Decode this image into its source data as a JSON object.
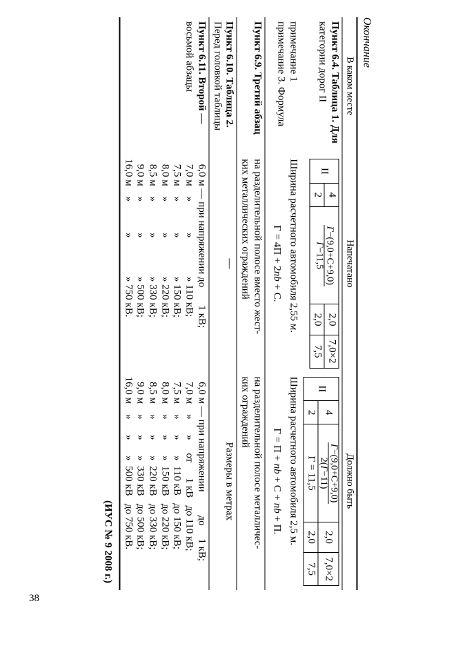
{
  "caption": "Окончание",
  "headers": {
    "col1": "В каком месте",
    "col2": "Напечатано",
    "col3": "Должно быть"
  },
  "row1": {
    "loc1": "Пункт 6.4. Таблица 1. Для",
    "loc2": "категории дорог II",
    "lab": "II",
    "p_top": "4",
    "p_bot": "2",
    "p_num": "Г−(9,0+С+9,0)",
    "p_den_printed": "Г−11,5",
    "p_den_should": "2(Г−11)",
    "c1_top": "2,0",
    "c1_bot": "2,0",
    "c2_top": "7,0×2",
    "c2_bot": "7,5",
    "s_row2_formula": "Г = 11,5",
    "s_row2_c1": "2,0",
    "s_row2_c2": "7,5"
  },
  "row2": {
    "loc1": "примечание 1",
    "loc2": "примечание 3. Формула",
    "printed": "Ширина расчетного автомобиля 2,55 м.",
    "should": "Ширина расчетного автомобиля 2,5 м.",
    "f_printed": "Г = 4П + 2nb + С.",
    "f_should": "Г = П + nb + С + nb + П."
  },
  "row3": {
    "loc": "Пункт 6.9. Третий абзац",
    "printed1": "на разделительной полосе вместо жест-",
    "printed2": "ких металлических ограждений",
    "should1": "на разделительной полосе металличес-",
    "should2": "ких ограждений"
  },
  "row4": {
    "loc1": "Пункт 6.10.  Таблица  2.",
    "loc2": "Перед головкой таблицы",
    "printed": "—",
    "should": "Размеры  в  метрах"
  },
  "row5": {
    "loc1": "Пункт  6.11.   Второй   —",
    "loc2": "восьмой абзацы",
    "lines_printed": [
      "  6,0 м — при напряжении до       1 кВ;",
      "  7,0 м    »            »               » 110 кВ;",
      "  7,5 м    »            »               » 150 кВ;",
      "  8,0 м    »            »               » 220 кВ;",
      "  8,5 м    »            »               » 330 кВ;",
      "  9,0 м    »            »               » 500 кВ;",
      "16,0 м    »            »               » 750 кВ."
    ],
    "lines_should": [
      "  6,0 м — при напряжении         до     1 кВ;",
      "  7,0 м    »      »     от      1 кВ   до 110 кВ;",
      "  7,5 м    »      »      »  110 кВ   до 150 кВ;",
      "  8,0 м    »      »      »  150 кВ   до 220 кВ;",
      "  8,5 м    »      »      »  220 кВ   до 330 кВ;",
      "  9,0 м    »      »      »  330 кВ   до 500 кВ;",
      "16,0 м    »      »      »  500 кВ   до 750 кВ."
    ]
  },
  "ius": "(ИУС № 9  2008 г.)",
  "page_number": "38"
}
